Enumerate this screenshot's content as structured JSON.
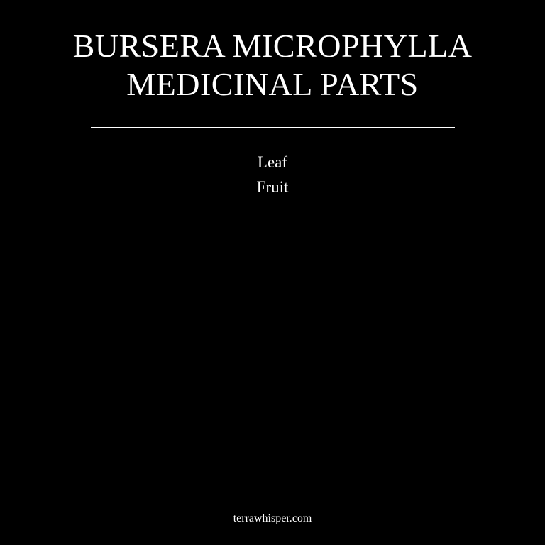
{
  "title": {
    "line1": "BURSERA MICROPHYLLA",
    "line2": "MEDICINAL PARTS"
  },
  "parts": [
    "Leaf",
    "Fruit"
  ],
  "footer": {
    "site": "terrawhisper.com"
  },
  "colors": {
    "background": "#000000",
    "text": "#ffffff"
  }
}
